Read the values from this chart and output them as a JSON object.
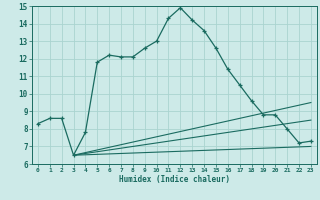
{
  "xlabel": "Humidex (Indice chaleur)",
  "bg_color": "#cdeae8",
  "grid_color": "#aad4d0",
  "line_color": "#1a6b60",
  "xlim": [
    -0.5,
    23.5
  ],
  "ylim": [
    6,
    15
  ],
  "xticks": [
    0,
    1,
    2,
    3,
    4,
    5,
    6,
    7,
    8,
    9,
    10,
    11,
    12,
    13,
    14,
    15,
    16,
    17,
    18,
    19,
    20,
    21,
    22,
    23
  ],
  "yticks": [
    6,
    7,
    8,
    9,
    10,
    11,
    12,
    13,
    14,
    15
  ],
  "curve1_x": [
    0,
    1,
    2,
    3,
    4,
    5,
    6,
    7,
    8,
    9,
    10,
    11,
    12,
    13,
    14,
    15,
    16,
    17,
    18,
    19,
    20,
    21,
    22,
    23
  ],
  "curve1_y": [
    8.3,
    8.6,
    8.6,
    6.5,
    7.8,
    11.8,
    12.2,
    12.1,
    12.1,
    12.6,
    13.0,
    14.3,
    14.9,
    14.2,
    13.6,
    12.6,
    11.4,
    10.5,
    9.6,
    8.8,
    8.8,
    8.0,
    7.2,
    7.3
  ],
  "line1_x": [
    3,
    23
  ],
  "line1_y": [
    6.5,
    7.0
  ],
  "line2_x": [
    3,
    23
  ],
  "line2_y": [
    6.5,
    8.5
  ],
  "line3_x": [
    3,
    23
  ],
  "line3_y": [
    6.5,
    9.5
  ]
}
